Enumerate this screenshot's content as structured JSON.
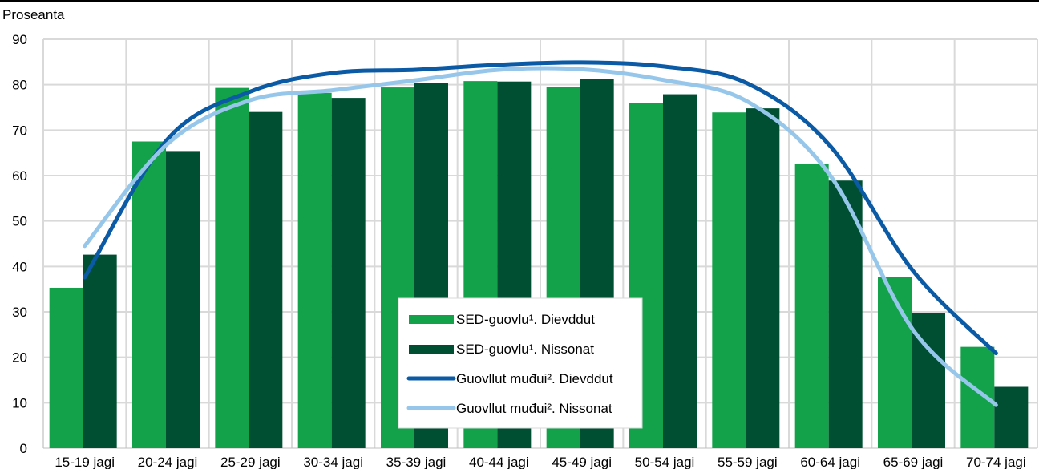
{
  "chart_data": {
    "type": "bar",
    "ylabel": "Proseanta",
    "ylim": [
      0,
      90
    ],
    "yticks": [
      0,
      10,
      20,
      30,
      40,
      50,
      60,
      70,
      80,
      90
    ],
    "grid": true,
    "legend_position": "bottom-center",
    "categories": [
      "15-19 jagi",
      "20-24 jagi",
      "25-29 jagi",
      "30-34 jagi",
      "35-39 jagi",
      "40-44 jagi",
      "45-49 jagi",
      "50-54 jagi",
      "55-59 jagi",
      "60-64 jagi",
      "65-69 jagi",
      "70-74 jagi"
    ],
    "bar_series": [
      {
        "name": "SED-guovlu¹. Dievddut",
        "color": "#13a24a",
        "values": [
          35.3,
          67.5,
          79.3,
          78.2,
          79.4,
          80.8,
          79.5,
          76.0,
          73.9,
          62.5,
          37.6,
          22.3
        ]
      },
      {
        "name": "SED-guovlu¹. Nissonat",
        "color": "#004f33",
        "values": [
          42.6,
          65.4,
          74.0,
          77.1,
          80.4,
          80.7,
          81.3,
          77.9,
          74.8,
          58.9,
          29.8,
          13.5
        ]
      }
    ],
    "line_series": [
      {
        "name": "Guovllut muđui². Dievddut",
        "color": "#0a5aa6",
        "values": [
          37.6,
          68.0,
          78.5,
          82.6,
          83.3,
          84.4,
          84.9,
          84.0,
          80.3,
          66.5,
          39.0,
          20.9
        ]
      },
      {
        "name": "Guovllut muđui². Nissonat",
        "color": "#96c7ea",
        "values": [
          44.5,
          67.0,
          76.6,
          78.8,
          81.0,
          83.3,
          83.4,
          81.0,
          76.3,
          60.0,
          26.0,
          9.5
        ]
      }
    ]
  }
}
